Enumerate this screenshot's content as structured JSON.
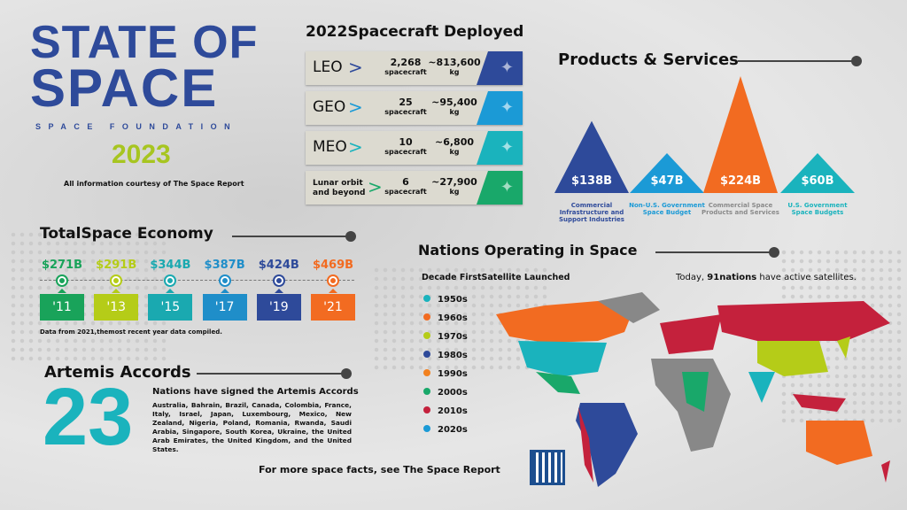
{
  "logo": {
    "line1": "STATE OF",
    "line2": "SPACE",
    "org": "SPACE FOUNDATION",
    "year": "2023"
  },
  "courtesy": "All information courtesy of The Space Report",
  "spacecraft": {
    "title": "2022Spacecraft  Deployed",
    "unit_count": "spacecraft",
    "unit_mass": "kg",
    "rows": [
      {
        "orbit": "LEO",
        "count": "2,268",
        "mass": "~813,600",
        "color": "#2e4a9a"
      },
      {
        "orbit": "GEO",
        "count": "25",
        "mass": "~95,400",
        "color": "#1b9ad6"
      },
      {
        "orbit": "MEO",
        "count": "10",
        "mass": "~6,800",
        "color": "#1ab3bd"
      },
      {
        "orbit": "Lunar orbit and beyond",
        "count": "6",
        "mass": "~27,900",
        "color": "#19a86a"
      }
    ]
  },
  "products": {
    "title": "Products & Services",
    "items": [
      {
        "value": "$138B",
        "label": "Commercial Infrastructure and Support Industries",
        "color": "#2e4a9a",
        "amount": 138
      },
      {
        "value": "$47B",
        "label": "Non-U.S. Government Space Budget",
        "color": "#1b9ad6",
        "amount": 47
      },
      {
        "value": "$224B",
        "label": "Commercial Space Products and Services",
        "color": "#f26b21",
        "amount": 224
      },
      {
        "value": "$60B",
        "label": "U.S. Government Space Budgets",
        "color": "#1ab3bd",
        "amount": 60
      }
    ]
  },
  "economy": {
    "title": "TotalSpace  Economy",
    "note": "Data from 2021,themost recent year data compiled.",
    "items": [
      {
        "value": "$271B",
        "year": "'11",
        "color": "#19a35a"
      },
      {
        "value": "$291B",
        "year": "'13",
        "color": "#b5cc18"
      },
      {
        "value": "$344B",
        "year": "'15",
        "color": "#1aa9b0"
      },
      {
        "value": "$387B",
        "year": "'17",
        "color": "#1f8ec9"
      },
      {
        "value": "$424B",
        "year": "'19",
        "color": "#2e4a9a"
      },
      {
        "value": "$469B",
        "year": "'21",
        "color": "#f26b21"
      }
    ]
  },
  "artemis": {
    "title": "Artemis Accords",
    "count": "23",
    "subtitle": "Nations have signed the Artemis Accords",
    "nations": "Australia, Bahrain, Brazil, Canada, Colombia, France, Italy, Israel, Japan, Luxembourg, Mexico, New Zealand, Nigeria, Poland, Romania, Rwanda, Saudi Arabia, Singapore, South Korea, Ukraine, the United Arab Emirates, the United Kingdom, and the United States."
  },
  "nations": {
    "title": "Nations Operating in Space",
    "legend_title": "Decade  FirstSatellite  Launched",
    "today_prefix": "Today, ",
    "today_count": "91nations",
    "today_suffix": " have  active  satellites.",
    "legend": [
      {
        "label": "1950s",
        "color": "#1ab3bd"
      },
      {
        "label": "1960s",
        "color": "#f26b21"
      },
      {
        "label": "1970s",
        "color": "#b5cc18"
      },
      {
        "label": "1980s",
        "color": "#2e4a9a"
      },
      {
        "label": "1990s",
        "color": "#f2811f"
      },
      {
        "label": "2000s",
        "color": "#19a86a"
      },
      {
        "label": "2010s",
        "color": "#c4213c"
      },
      {
        "label": "2020s",
        "color": "#1b9ad6"
      }
    ]
  },
  "footer": "For more space  facts,  see The Space  Report"
}
